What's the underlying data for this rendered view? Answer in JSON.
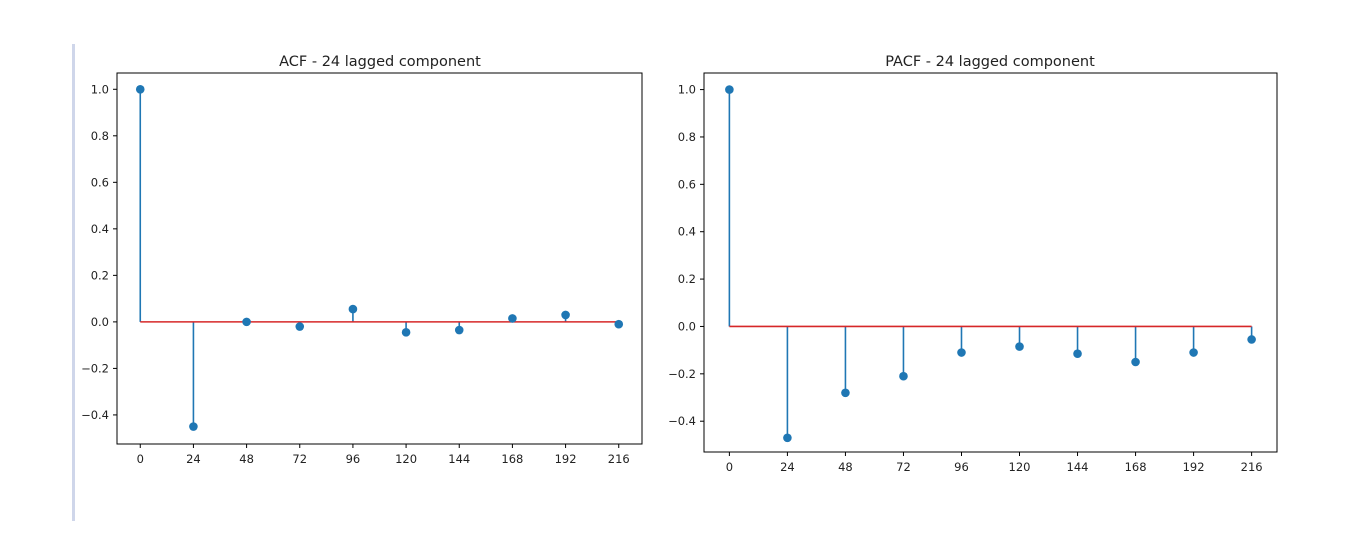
{
  "colors": {
    "stem": "#1f77b4",
    "baseline": "#d62728",
    "axis": "#000000"
  },
  "chart_data": [
    {
      "type": "stem",
      "title": "ACF - 24 lagged component",
      "xlabel": "",
      "ylabel": "",
      "x": [
        0,
        24,
        48,
        72,
        96,
        120,
        144,
        168,
        192,
        216
      ],
      "values": [
        1.0,
        -0.45,
        0.0,
        -0.02,
        0.055,
        -0.045,
        -0.035,
        0.015,
        0.03,
        -0.01
      ],
      "xticks": [
        "0",
        "24",
        "48",
        "72",
        "96",
        "120",
        "144",
        "168",
        "192",
        "216"
      ],
      "yticks": [
        "1.0",
        "0.8",
        "0.6",
        "0.4",
        "0.2",
        "0.0",
        "−0.2",
        "−0.4"
      ],
      "xlim": [
        -10.5,
        226.5
      ],
      "ylim": [
        -0.525,
        1.07
      ],
      "grid": false
    },
    {
      "type": "stem",
      "title": "PACF - 24 lagged component",
      "xlabel": "",
      "ylabel": "",
      "x": [
        0,
        24,
        48,
        72,
        96,
        120,
        144,
        168,
        192,
        216
      ],
      "values": [
        1.0,
        -0.47,
        -0.28,
        -0.21,
        -0.11,
        -0.085,
        -0.115,
        -0.15,
        -0.11,
        -0.055
      ],
      "xticks": [
        "0",
        "24",
        "48",
        "72",
        "96",
        "120",
        "144",
        "168",
        "192",
        "216"
      ],
      "yticks": [
        "1.0",
        "0.8",
        "0.6",
        "0.4",
        "0.2",
        "0.0",
        "−0.2",
        "−0.4"
      ],
      "xlim": [
        -10.5,
        226.5
      ],
      "ylim": [
        -0.53,
        1.07
      ],
      "grid": false
    }
  ]
}
